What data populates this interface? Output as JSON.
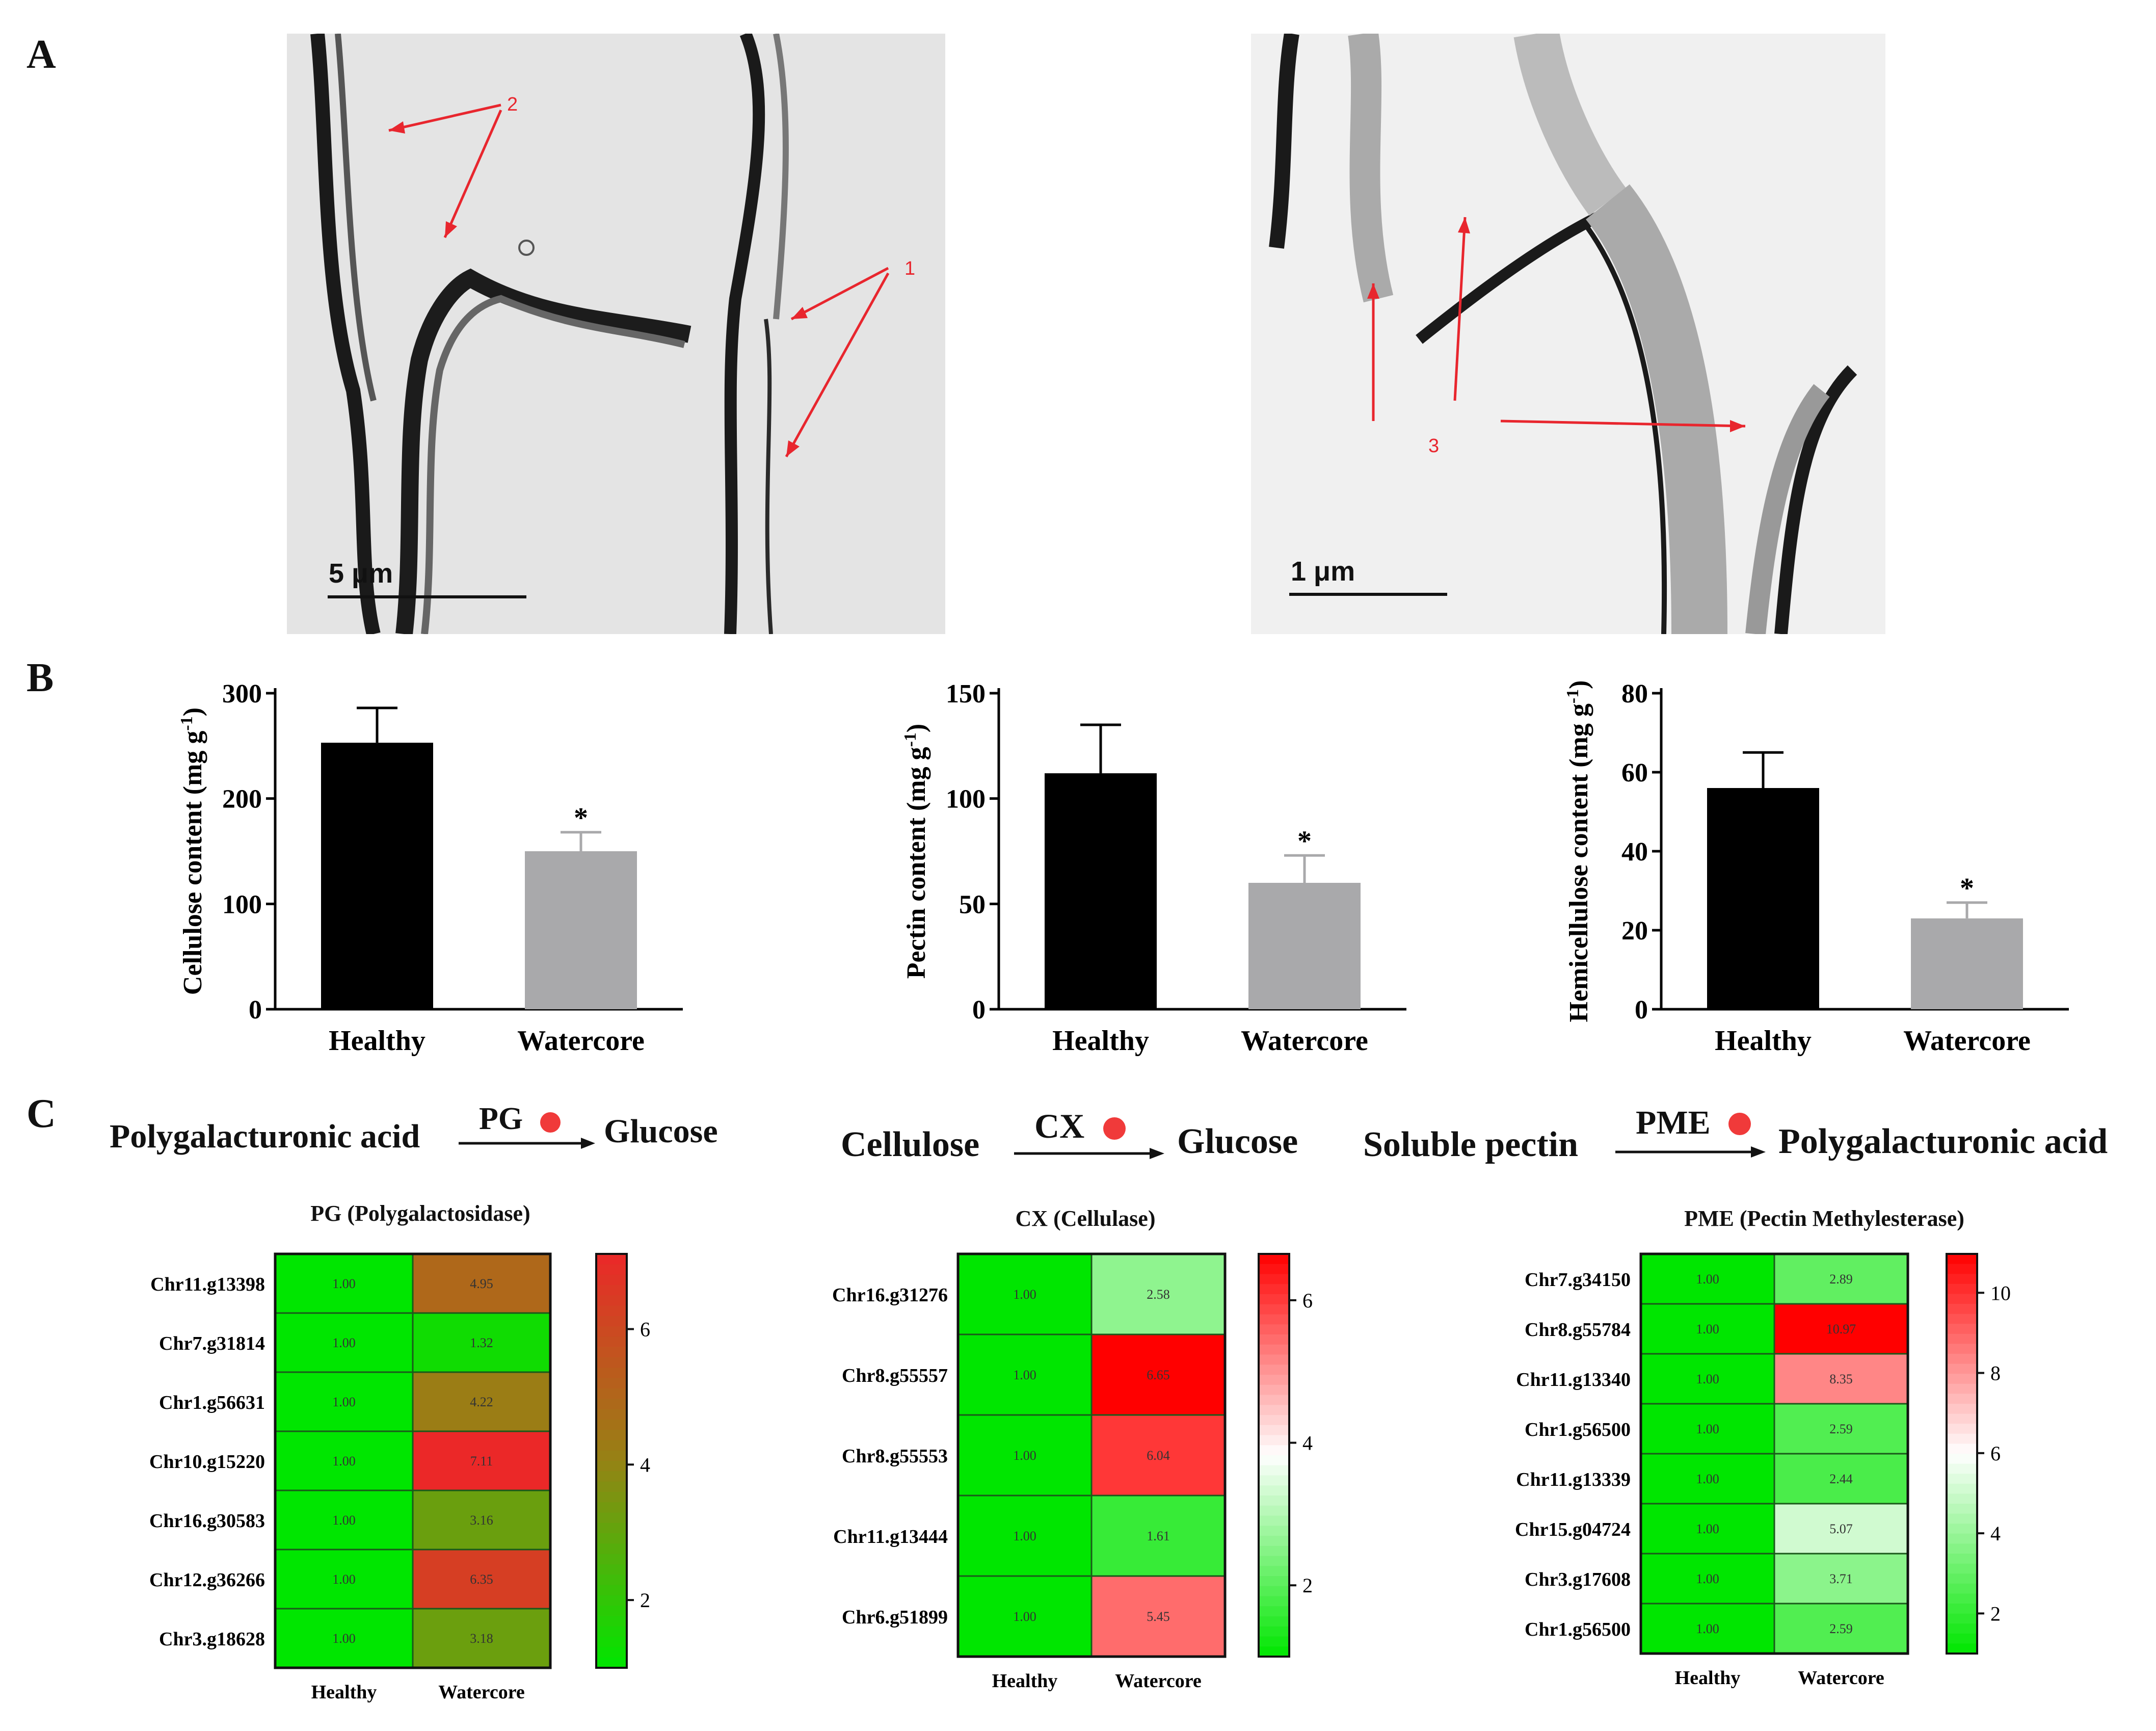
{
  "panel_labels": {
    "a": "A",
    "b": "B",
    "c": "C"
  },
  "micrographs": [
    {
      "scale_label": "5 μm",
      "annotations": [
        "1",
        "2"
      ]
    },
    {
      "scale_label": "1 μm",
      "annotations": [
        "3"
      ]
    }
  ],
  "reactions": [
    {
      "substrate": "Polygalacturonic acid",
      "enzyme": "PG",
      "product": "Glucose"
    },
    {
      "substrate": "Cellulose",
      "enzyme": "CX",
      "product": "Glucose"
    },
    {
      "substrate": "Soluble pectin",
      "enzyme": "PME",
      "product": "Polygalacturonic acid"
    }
  ],
  "colors": {
    "healthy_bar": "#000000",
    "watercore_bar": "#a9a9ab",
    "arrow_red": "#e8262e",
    "dot_red": "#f03a3a",
    "heat_low": "#00e600",
    "heat_mid": "#ffffff",
    "heat_high": "#ff0000"
  },
  "chart_data": [
    {
      "type": "bar",
      "categories": [
        "Healthy",
        "Watercore"
      ],
      "values": [
        253,
        150
      ],
      "errors": [
        33,
        18
      ],
      "significance": [
        "",
        "*"
      ],
      "ylabel": "Cellulose content (mg g-1)",
      "ylim": [
        0,
        300
      ],
      "yticks": [
        0,
        100,
        200,
        300
      ]
    },
    {
      "type": "bar",
      "categories": [
        "Healthy",
        "Watercore"
      ],
      "values": [
        112,
        60
      ],
      "errors": [
        23,
        13
      ],
      "significance": [
        "",
        "*"
      ],
      "ylabel": "Pectin content (mg g-1)",
      "ylim": [
        0,
        150
      ],
      "yticks": [
        0,
        50,
        100,
        150
      ]
    },
    {
      "type": "bar",
      "categories": [
        "Healthy",
        "Watercore"
      ],
      "values": [
        56,
        23
      ],
      "errors": [
        9,
        4
      ],
      "significance": [
        "",
        "*"
      ],
      "ylabel": "Hemicellulose content (mg g-1)",
      "ylim": [
        0,
        80
      ],
      "yticks": [
        0,
        20,
        40,
        60,
        80
      ]
    },
    {
      "type": "heatmap",
      "title": "PG (Polygalactosidase)",
      "columns": [
        "Healthy",
        "Watercore"
      ],
      "rows": [
        "Chr11.g13398",
        "Chr7.g31814",
        "Chr1.g56631",
        "Chr10.g15220",
        "Chr16.g30583",
        "Chr12.g36266",
        "Chr3.g18628"
      ],
      "values": [
        [
          1.0,
          4.95
        ],
        [
          1.0,
          1.32
        ],
        [
          1.0,
          4.22
        ],
        [
          1.0,
          7.11
        ],
        [
          1.0,
          3.16
        ],
        [
          1.0,
          6.35
        ],
        [
          1.0,
          3.18
        ]
      ],
      "labels": [
        [
          "1.00",
          "4.95"
        ],
        [
          "1.00",
          "1.32"
        ],
        [
          "1.00",
          "4.22"
        ],
        [
          "1.00",
          "7.11"
        ],
        [
          "1.00",
          "3.16"
        ],
        [
          "1.00",
          "6.35"
        ],
        [
          "1.00",
          "3.18"
        ]
      ],
      "color_range": [
        1,
        7.11
      ],
      "colorbar_ticks": [
        "2",
        "4",
        "6"
      ],
      "colorbar_tick_values": [
        2,
        4,
        6
      ],
      "palette": "green-brown-red"
    },
    {
      "type": "heatmap",
      "title": "CX (Cellulase)",
      "columns": [
        "Healthy",
        "Watercore"
      ],
      "rows": [
        "Chr16.g31276",
        "Chr8.g55557",
        "Chr8.g55553",
        "Chr11.g13444",
        "Chr6.g51899"
      ],
      "values": [
        [
          1.0,
          2.58
        ],
        [
          1.0,
          6.65
        ],
        [
          1.0,
          6.04
        ],
        [
          1.0,
          1.61
        ],
        [
          1.0,
          5.45
        ]
      ],
      "labels": [
        [
          "1.00",
          "2.58"
        ],
        [
          "1.00",
          "6.65"
        ],
        [
          "1.00",
          "6.04"
        ],
        [
          "1.00",
          "1.61"
        ],
        [
          "1.00",
          "5.45"
        ]
      ],
      "color_range": [
        1,
        6.65
      ],
      "colorbar_ticks": [
        "2",
        "4",
        "6"
      ],
      "colorbar_tick_values": [
        2,
        4,
        6
      ],
      "palette": "green-white-red"
    },
    {
      "type": "heatmap",
      "title": "PME (Pectin Methylesterase)",
      "columns": [
        "Healthy",
        "Watercore"
      ],
      "rows": [
        "Chr7.g34150",
        "Chr8.g55784",
        "Chr11.g13340",
        "Chr1.g56500",
        "Chr11.g13339",
        "Chr15.g04724",
        "Chr3.g17608",
        "Chr1.g56500"
      ],
      "values": [
        [
          1.0,
          2.89
        ],
        [
          1.0,
          10.97
        ],
        [
          1.0,
          8.35
        ],
        [
          1.0,
          2.59
        ],
        [
          1.0,
          2.44
        ],
        [
          1.0,
          5.07
        ],
        [
          1.0,
          3.71
        ],
        [
          1.0,
          2.59
        ]
      ],
      "labels": [
        [
          "1.00",
          "2.89"
        ],
        [
          "1.00",
          "10.97"
        ],
        [
          "1.00",
          "8.35"
        ],
        [
          "1.00",
          "2.59"
        ],
        [
          "1.00",
          "2.44"
        ],
        [
          "1.00",
          "5.07"
        ],
        [
          "1.00",
          "3.71"
        ],
        [
          "1.00",
          "2.59"
        ]
      ],
      "color_range": [
        1,
        10.97
      ],
      "colorbar_ticks": [
        "2",
        "4",
        "6",
        "8",
        "10"
      ],
      "colorbar_tick_values": [
        2,
        4,
        6,
        8,
        10
      ],
      "palette": "green-white-red"
    }
  ]
}
